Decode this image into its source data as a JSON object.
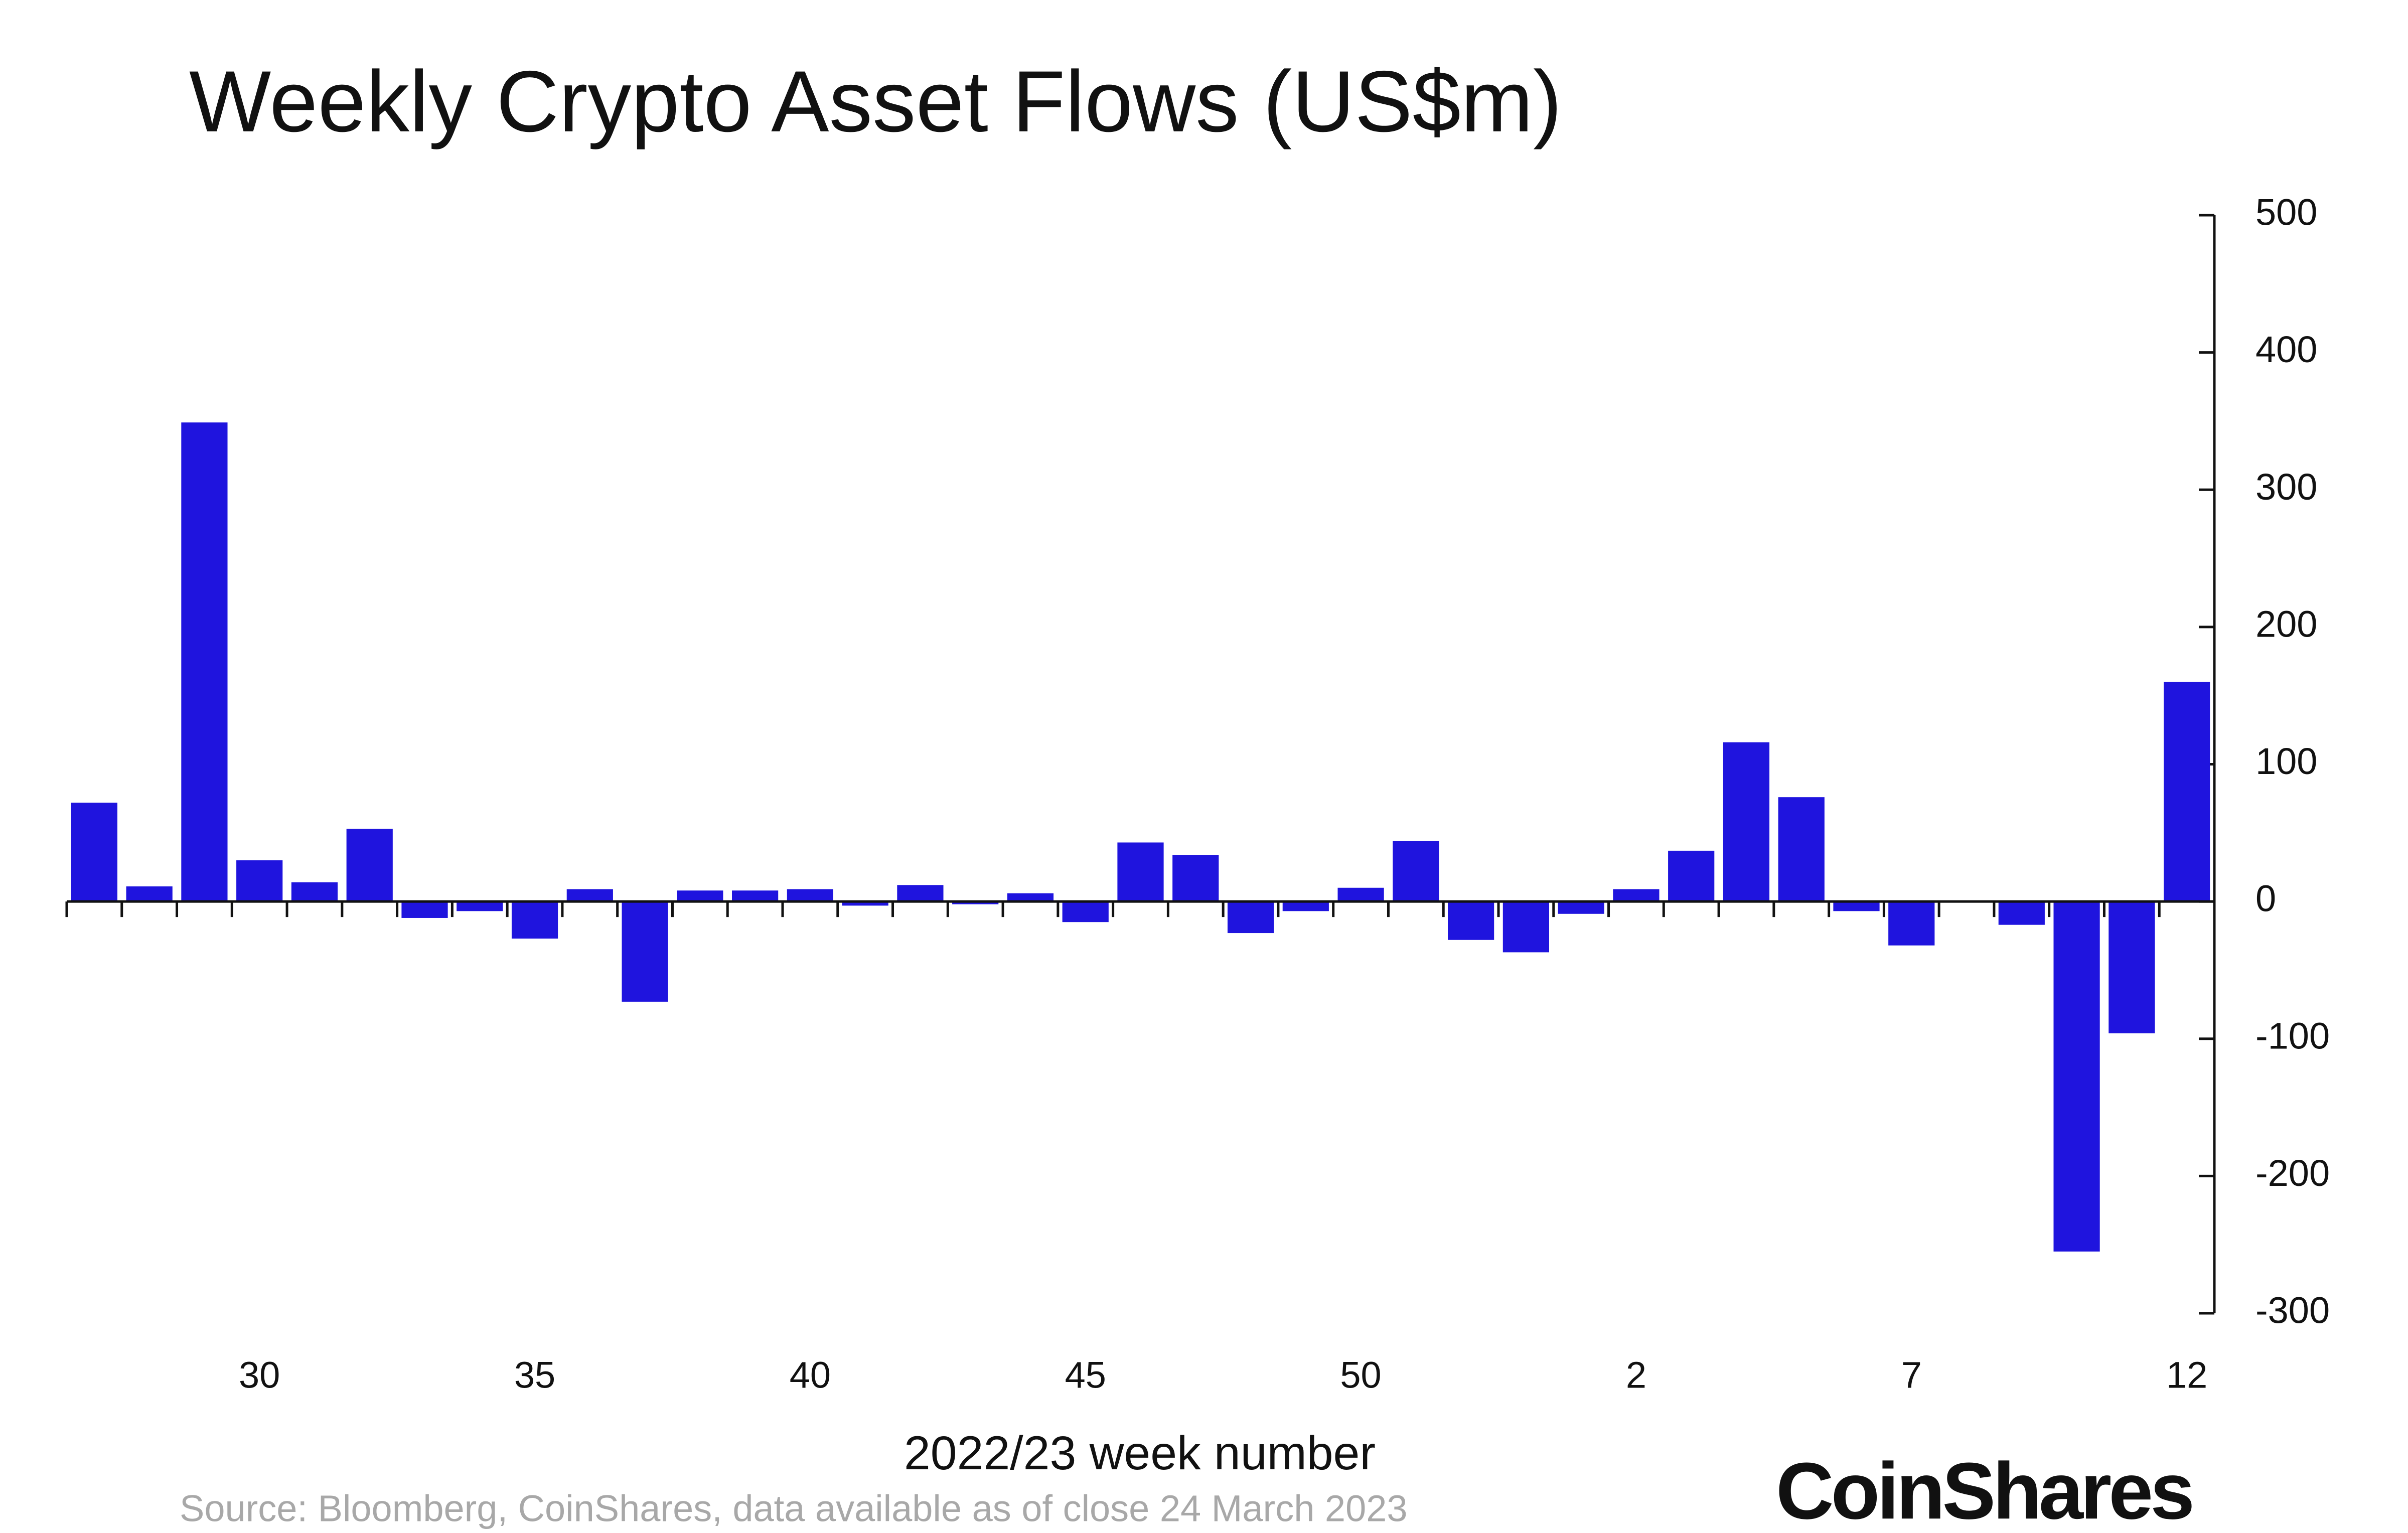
{
  "chart_data": {
    "type": "bar",
    "title": "Weekly Crypto Asset Flows (US$m)",
    "x_label": "2022/23 week number",
    "source": "Source: Bloomberg, CoinShares, data available as of close 24 March 2023",
    "logo": "CoinShares",
    "categories": [
      null,
      null,
      null,
      "30",
      null,
      null,
      null,
      null,
      "35",
      null,
      null,
      null,
      null,
      "40",
      null,
      null,
      null,
      null,
      "45",
      null,
      null,
      null,
      null,
      "50",
      null,
      null,
      null,
      null,
      "2",
      null,
      null,
      null,
      null,
      "7",
      null,
      null,
      null,
      null,
      "12"
    ],
    "values": [
      72,
      11,
      349,
      30,
      14,
      53,
      -12,
      -7,
      -27,
      9,
      -73,
      8,
      8,
      9,
      -3,
      12,
      -2,
      6,
      -15,
      43,
      34,
      -23,
      -7,
      10,
      44,
      -28,
      -37,
      -9,
      9,
      37,
      116,
      76,
      -7,
      -32,
      0,
      -17,
      -255,
      -96,
      160
    ],
    "color": "#1f14de",
    "ylim": [
      -300,
      500
    ],
    "yticks": [
      -300,
      -200,
      -100,
      0,
      100,
      200,
      300,
      400,
      500
    ],
    "y_axis_side": "right",
    "grid": false
  }
}
